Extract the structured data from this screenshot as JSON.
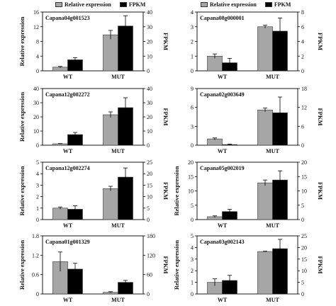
{
  "legend": {
    "relative_label": "Relative expression",
    "fpkm_label": "FPKM",
    "relative_color": "#a6a6a6",
    "fpkm_color": "#000000"
  },
  "chart_data": [
    {
      "type": "bar",
      "title": "Capana04g001523",
      "categories": [
        "WT",
        "MUT"
      ],
      "ylabel": "Relative expression",
      "y2label": "FPKM",
      "ylim": [
        0,
        16
      ],
      "yticks": [
        0,
        4,
        8,
        12,
        16
      ],
      "y2lim": [
        0,
        40
      ],
      "y2ticks": [
        0,
        10,
        20,
        30,
        40
      ],
      "series": [
        {
          "name": "Relative expression",
          "axis": "left",
          "values": [
            1.0,
            9.8
          ],
          "errors": [
            0.2,
            1.2
          ]
        },
        {
          "name": "FPKM",
          "axis": "right",
          "values": [
            7.5,
            30.5
          ],
          "errors": [
            1.5,
            7.0
          ]
        }
      ]
    },
    {
      "type": "bar",
      "title": "Capana08g000001",
      "categories": [
        "WT",
        "MUT"
      ],
      "ylabel": "",
      "y2label": "FPKM",
      "ylim": [
        0,
        4
      ],
      "yticks": [
        0,
        1,
        2,
        3,
        4
      ],
      "y2lim": [
        0,
        8
      ],
      "y2ticks": [
        0,
        2,
        4,
        6,
        8
      ],
      "series": [
        {
          "name": "Relative expression",
          "axis": "left",
          "values": [
            1.0,
            3.0
          ],
          "errors": [
            0.15,
            0.1
          ]
        },
        {
          "name": "FPKM",
          "axis": "right",
          "values": [
            1.1,
            5.4
          ],
          "errors": [
            0.6,
            1.8
          ]
        }
      ]
    },
    {
      "type": "bar",
      "title": "Capana12g002272",
      "categories": [
        "WT",
        "MUT"
      ],
      "ylabel": "Relative expression",
      "y2label": "FPKM",
      "ylim": [
        0,
        40
      ],
      "yticks": [
        0,
        10,
        20,
        30,
        40
      ],
      "y2lim": [
        0,
        40
      ],
      "y2ticks": [
        0,
        10,
        20,
        30,
        40
      ],
      "series": [
        {
          "name": "Relative expression",
          "axis": "left",
          "values": [
            1.0,
            21.5
          ],
          "errors": [
            0.2,
            2.0
          ]
        },
        {
          "name": "FPKM",
          "axis": "right",
          "values": [
            7.5,
            26.5
          ],
          "errors": [
            1.5,
            7.0
          ]
        }
      ]
    },
    {
      "type": "bar",
      "title": "Capana02g003649",
      "categories": [
        "WT",
        "MUT"
      ],
      "ylabel": "",
      "y2label": "FPKM",
      "ylim": [
        0,
        9
      ],
      "yticks": [
        0,
        3,
        6,
        9
      ],
      "y2lim": [
        0,
        18
      ],
      "y2ticks": [
        0,
        6,
        12,
        18
      ],
      "series": [
        {
          "name": "Relative expression",
          "axis": "left",
          "values": [
            1.0,
            5.6
          ],
          "errors": [
            0.15,
            0.3
          ]
        },
        {
          "name": "FPKM",
          "axis": "right",
          "values": [
            0.2,
            10.3
          ],
          "errors": [
            0.15,
            5.0
          ]
        }
      ]
    },
    {
      "type": "bar",
      "title": "Capana12g002274",
      "categories": [
        "WT",
        "MUT"
      ],
      "ylabel": "Relative expression",
      "y2label": "FPKM",
      "ylim": [
        0,
        5
      ],
      "yticks": [
        0,
        1,
        2,
        3,
        4,
        5
      ],
      "y2lim": [
        0,
        25
      ],
      "y2ticks": [
        0,
        5,
        10,
        15,
        20,
        25
      ],
      "series": [
        {
          "name": "Relative expression",
          "axis": "left",
          "values": [
            1.0,
            2.7
          ],
          "errors": [
            0.1,
            0.2
          ]
        },
        {
          "name": "FPKM",
          "axis": "right",
          "values": [
            4.5,
            18.5
          ],
          "errors": [
            1.5,
            4.0
          ]
        }
      ]
    },
    {
      "type": "bar",
      "title": "Capana05g002019",
      "categories": [
        "WT",
        "MUT"
      ],
      "ylabel": "Relative expression",
      "y2label": "FPKM",
      "ylim": [
        0,
        20
      ],
      "yticks": [
        0,
        5,
        10,
        15,
        20
      ],
      "y2lim": [
        0,
        20
      ],
      "y2ticks": [
        0,
        5,
        10,
        15,
        20
      ],
      "series": [
        {
          "name": "Relative expression",
          "axis": "left",
          "values": [
            1.0,
            12.8
          ],
          "errors": [
            0.3,
            1.0
          ]
        },
        {
          "name": "FPKM",
          "axis": "right",
          "values": [
            2.8,
            13.8
          ],
          "errors": [
            0.8,
            3.2
          ]
        }
      ]
    },
    {
      "type": "bar",
      "title": "Capana01g001329",
      "categories": [
        "WT",
        "MUT"
      ],
      "ylabel": "Relative expression",
      "y2label": "FPKM",
      "ylim": [
        0,
        1.8
      ],
      "yticks": [
        0,
        0.6,
        1.2,
        1.8
      ],
      "y2lim": [
        0,
        180
      ],
      "y2ticks": [
        0,
        60,
        120,
        180
      ],
      "series": [
        {
          "name": "Relative expression",
          "axis": "left",
          "values": [
            1.0,
            0.05
          ],
          "errors": [
            0.3,
            0.02
          ]
        },
        {
          "name": "FPKM",
          "axis": "right",
          "values": [
            77,
            36
          ],
          "errors": [
            18,
            6
          ]
        }
      ]
    },
    {
      "type": "bar",
      "title": "Capana03g002143",
      "categories": [
        "WT",
        "MUT"
      ],
      "ylabel": "Relative expression",
      "y2label": "FPKM",
      "ylim": [
        0,
        5
      ],
      "yticks": [
        0,
        1,
        2,
        3,
        4,
        5
      ],
      "y2lim": [
        0,
        25
      ],
      "y2ticks": [
        0,
        5,
        10,
        15,
        20,
        25
      ],
      "series": [
        {
          "name": "Relative expression",
          "axis": "left",
          "values": [
            1.0,
            3.65
          ],
          "errors": [
            0.3,
            0.03
          ]
        },
        {
          "name": "FPKM",
          "axis": "right",
          "values": [
            5.8,
            19.5
          ],
          "errors": [
            2.2,
            4.0
          ]
        }
      ]
    }
  ]
}
